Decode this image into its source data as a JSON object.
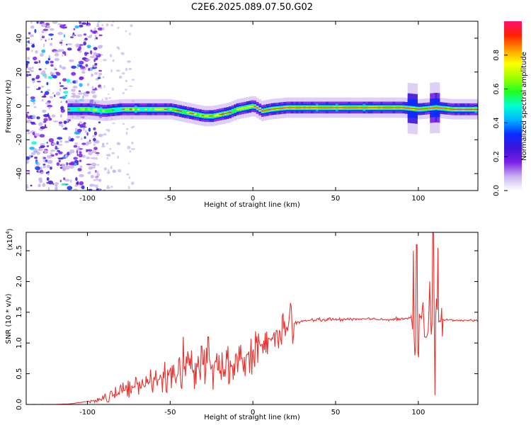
{
  "figure": {
    "title": "C2E6.2025.089.07.50.G02"
  },
  "chart_data": [
    {
      "type": "heatmap",
      "description_of_content": "spectrogram of normalized spectral amplitude vs height and frequency",
      "xlabel": "Height of straight line (km)",
      "ylabel": "Frequency (Hz)",
      "xlim": [
        -137,
        136
      ],
      "ylim": [
        -50,
        50
      ],
      "xticks": [
        -100,
        -50,
        0,
        50,
        100
      ],
      "yticks": [
        -40,
        -20,
        0,
        20,
        40
      ],
      "colorbar": {
        "label": "Normalized spectral amplitude",
        "range": [
          0.0,
          1.0
        ],
        "ticks": [
          0.0,
          0.2,
          0.4,
          0.6,
          0.8
        ],
        "tick_labels": [
          "0.0",
          "0.2",
          "0.4",
          "0.6",
          "0.8"
        ],
        "colors": [
          "#ffffff",
          "#c9b3f0",
          "#7a1fe6",
          "#3c14d8",
          "#0b2aff",
          "#00b4ff",
          "#00ffd2",
          "#20ff20",
          "#a0ff00",
          "#ffff00",
          "#ff9900",
          "#ff2000",
          "#ff1070"
        ]
      },
      "ridge": {
        "x": [
          -110,
          -100,
          -90,
          -80,
          -70,
          -60,
          -50,
          -45,
          -40,
          -35,
          -30,
          -25,
          -20,
          -15,
          -10,
          -5,
          0,
          5,
          10,
          20,
          30,
          50,
          70,
          90,
          100,
          110,
          120,
          136
        ],
        "y": [
          -2,
          -2,
          -3,
          -2,
          -2,
          -2,
          -2,
          -3,
          -4,
          -5,
          -6,
          -6,
          -5,
          -4,
          -2,
          -1,
          0,
          -3,
          -2,
          -1,
          -1,
          -1,
          -1,
          -1,
          -2,
          -1,
          -2,
          -2
        ]
      }
    },
    {
      "type": "line",
      "xlabel": "Height of straight line (km)",
      "ylabel": "SNR (10 * v/v)",
      "y_multiplier": "(x10",
      "y_multiplier_exp": "4",
      "xlim": [
        -137,
        136
      ],
      "ylim": [
        0,
        2.8
      ],
      "xticks": [
        -100,
        -50,
        0,
        50,
        100
      ],
      "yticks": [
        0.0,
        0.5,
        1.0,
        1.5,
        2.0,
        2.5
      ],
      "ytick_labels": [
        "0.0",
        "0.5",
        "1.0",
        "1.5",
        "2.0",
        "2.5"
      ],
      "color": "#e8332f",
      "series": [
        {
          "x": [
            -137,
            -120,
            -110,
            -105,
            -100,
            -95,
            -90,
            -85,
            -80,
            -75,
            -70,
            -65,
            -60,
            -55,
            -50,
            -45,
            -40,
            -35,
            -30,
            -25,
            -20,
            -15,
            -10,
            -5,
            0,
            5,
            10,
            15,
            20,
            25,
            30,
            40,
            50,
            60,
            70,
            80,
            90,
            95,
            97,
            99,
            101,
            103,
            105,
            107,
            109,
            111,
            113,
            120,
            130,
            136
          ],
          "y": [
            0.0,
            0.0,
            0.01,
            0.03,
            0.05,
            0.07,
            0.1,
            0.15,
            0.2,
            0.25,
            0.3,
            0.33,
            0.38,
            0.42,
            0.45,
            0.5,
            0.55,
            0.6,
            0.65,
            0.6,
            0.55,
            0.6,
            0.7,
            0.78,
            0.85,
            0.95,
            1.05,
            1.15,
            1.25,
            1.32,
            1.36,
            1.38,
            1.38,
            1.39,
            1.39,
            1.38,
            1.4,
            1.4,
            1.3,
            0.4,
            1.3,
            1.4,
            1.2,
            1.3,
            1.5,
            1.4,
            1.38,
            1.37,
            1.37,
            1.36
          ]
        }
      ],
      "spikes": {
        "x": [
          -42,
          -31,
          -27,
          -15,
          10,
          11,
          97,
          99,
          104,
          107,
          109,
          110,
          112
        ],
        "y": [
          1.1,
          0.95,
          1.1,
          0.95,
          1.07,
          1.04,
          2.5,
          2.6,
          1.1,
          2.0,
          2.8,
          0.15,
          2.55
        ]
      }
    }
  ]
}
